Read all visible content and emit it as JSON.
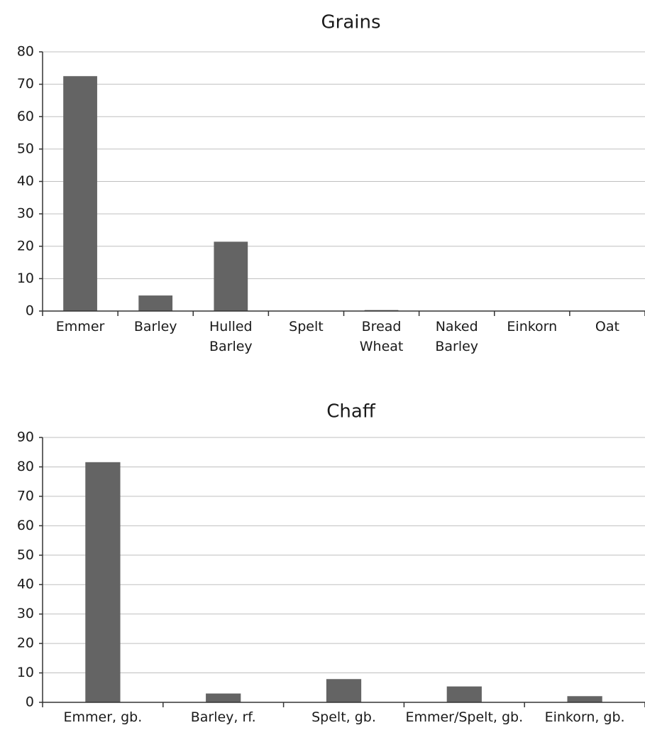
{
  "chart_data": [
    {
      "type": "bar",
      "title": "Grains",
      "categories": [
        [
          "Emmer"
        ],
        [
          "Barley"
        ],
        [
          "Hulled",
          "Barley"
        ],
        [
          "Spelt"
        ],
        [
          "Bread",
          "Wheat"
        ],
        [
          "Naked",
          "Barley"
        ],
        [
          "Einkorn"
        ],
        [
          "Oat"
        ]
      ],
      "values": [
        72.5,
        4.8,
        21.4,
        0,
        0.3,
        0,
        0,
        0
      ],
      "ylim": [
        0,
        80
      ],
      "yticks": [
        0,
        10,
        20,
        30,
        40,
        50,
        60,
        70,
        80
      ],
      "grid": true,
      "bar_color": "#646464"
    },
    {
      "type": "bar",
      "title": "Chaff",
      "categories": [
        [
          "Emmer, gb."
        ],
        [
          "Barley, rf."
        ],
        [
          "Spelt, gb."
        ],
        [
          "Emmer/Spelt, gb."
        ],
        [
          "Einkorn, gb."
        ]
      ],
      "values": [
        81.6,
        3.0,
        7.9,
        5.4,
        2.1
      ],
      "ylim": [
        0,
        90
      ],
      "yticks": [
        0,
        10,
        20,
        30,
        40,
        50,
        60,
        70,
        80,
        90
      ],
      "grid": true,
      "bar_color": "#646464"
    }
  ]
}
